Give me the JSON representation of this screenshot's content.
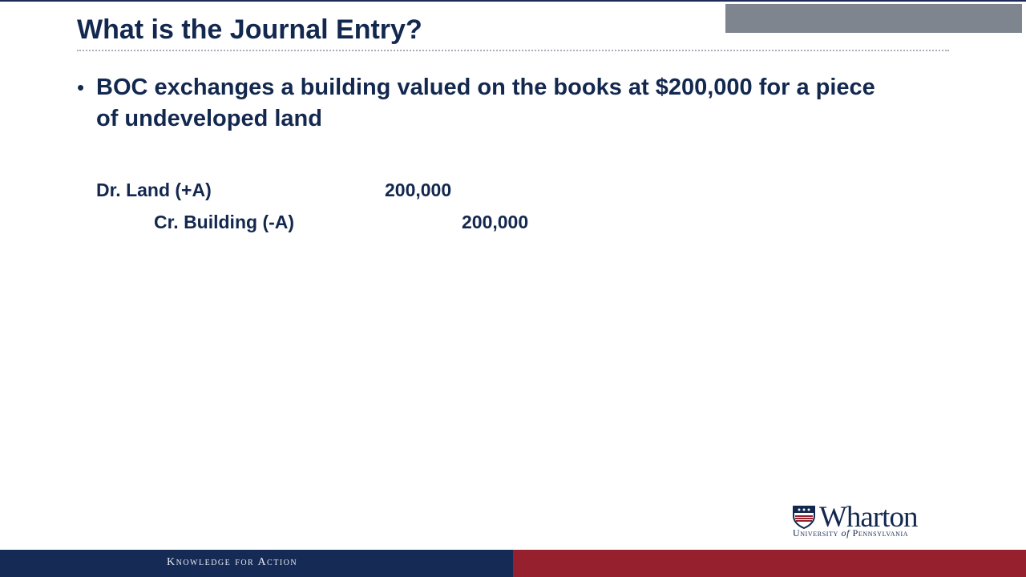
{
  "slide": {
    "title": "What is the Journal Entry?",
    "bullet": "BOC exchanges a building valued on the books at $200,000 for a piece of undeveloped land"
  },
  "journal_entry": {
    "debit": {
      "account": "Dr. Land (+A)",
      "amount": "200,000"
    },
    "credit": {
      "account": "Cr. Building (-A)",
      "amount": "200,000"
    }
  },
  "logo": {
    "name": "Wharton",
    "university_prefix": "University",
    "university_of": "of",
    "university_suffix": "Pennsylvania",
    "icon": "penn-shield-icon"
  },
  "footer": {
    "tagline": "Knowledge for Action"
  },
  "colors": {
    "navy": "#13284f",
    "footer_navy": "#152a55",
    "footer_red": "#96202e",
    "corner_gray": "#7f858f"
  }
}
